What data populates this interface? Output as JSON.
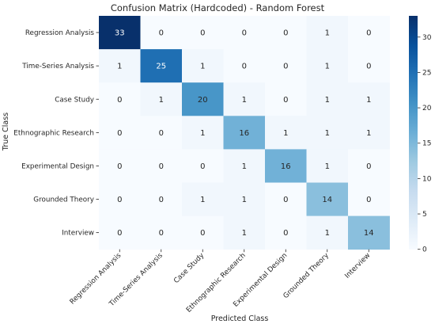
{
  "chart_data": {
    "type": "heatmap",
    "title": "Confusion Matrix (Hardcoded) - Random Forest",
    "xlabel": "Predicted Class",
    "ylabel": "True Class",
    "rows": [
      "Regression Analysis",
      "Time-Series Analysis",
      "Case Study",
      "Ethnographic Research",
      "Experimental Design",
      "Grounded Theory",
      "Interview"
    ],
    "columns": [
      "Regression Analysis",
      "Time-Series Analysis",
      "Case Study",
      "Ethnographic Research",
      "Experimental Design",
      "Grounded Theory",
      "Interview"
    ],
    "values": [
      [
        33,
        0,
        0,
        0,
        0,
        1,
        0
      ],
      [
        1,
        25,
        1,
        0,
        0,
        1,
        0
      ],
      [
        0,
        1,
        20,
        1,
        0,
        1,
        1
      ],
      [
        0,
        0,
        1,
        16,
        1,
        1,
        1
      ],
      [
        0,
        0,
        0,
        1,
        16,
        1,
        0
      ],
      [
        0,
        0,
        1,
        1,
        0,
        14,
        0
      ],
      [
        0,
        0,
        0,
        1,
        0,
        1,
        14
      ]
    ],
    "colorbar": {
      "range": [
        0,
        33
      ],
      "ticks": [
        0,
        5,
        10,
        15,
        20,
        25,
        30
      ]
    },
    "colormap": "Blues",
    "colors": {
      "low": "#f7fbff",
      "high": "#08306b"
    }
  }
}
